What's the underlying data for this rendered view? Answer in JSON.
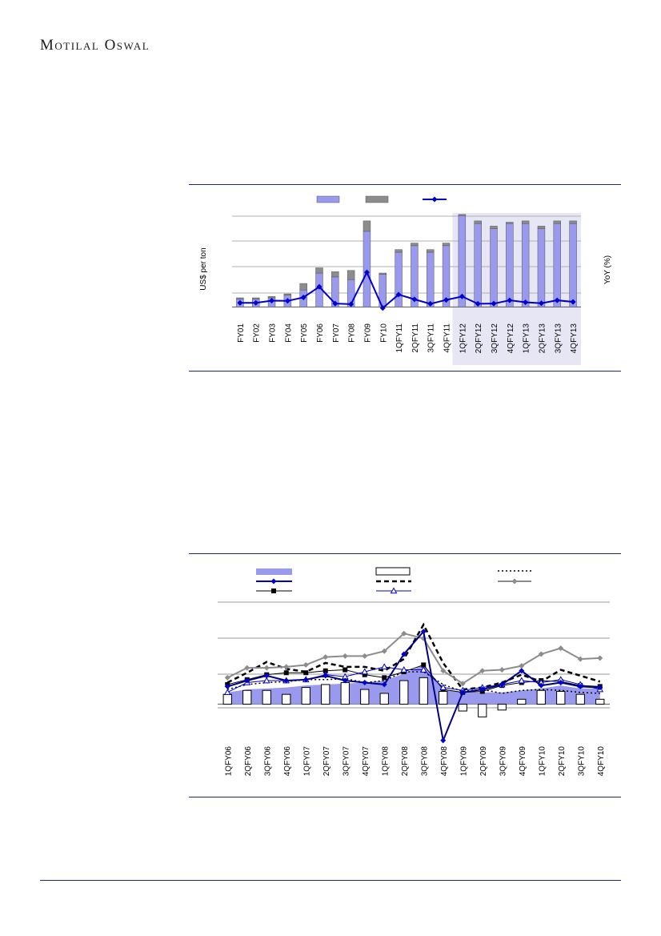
{
  "header": {
    "logo_text": "Motilal Oswal"
  },
  "colors": {
    "rule": "#1f2a6b",
    "accent_purple": "#9999ee",
    "grey_bar": "#8c8c8c",
    "navy": "#0000cc",
    "shade": "#e6e6f5"
  },
  "chart_data": [
    {
      "type": "bar",
      "ylabel": "US$ per ton",
      "y2label": "YoY (%)",
      "ylim": [
        -45,
        385
      ],
      "y2lim": [
        -80,
        500
      ],
      "grid": true,
      "categories": [
        "FY01",
        "FY02",
        "FY03",
        "FY04",
        "FY05",
        "FY06",
        "FY07",
        "FY08",
        "FY09",
        "FY10",
        "1QFY11",
        "2QFY11",
        "3QFY11",
        "4QFY11",
        "1QFY12",
        "2QFY12",
        "3QFY12",
        "4QFY12",
        "1QFY13",
        "2QFY13",
        "3QFY13",
        "4QFY13"
      ],
      "shaded_from_index": 14,
      "series": [
        {
          "kind": "bar_stack_bottom",
          "values": [
            30,
            30,
            35,
            45,
            65,
            130,
            115,
            105,
            290,
            125,
            210,
            235,
            210,
            235,
            350,
            320,
            300,
            320,
            320,
            300,
            320,
            320
          ]
        },
        {
          "kind": "bar_stack_top",
          "values": [
            5,
            5,
            5,
            5,
            25,
            20,
            20,
            35,
            40,
            5,
            10,
            10,
            10,
            10,
            5,
            10,
            10,
            5,
            10,
            10,
            10,
            10
          ]
        },
        {
          "kind": "line_y2",
          "values": [
            2,
            2,
            13,
            12,
            30,
            85,
            -2,
            -5,
            160,
            -25,
            45,
            20,
            -3,
            17,
            35,
            -3,
            -2,
            15,
            5,
            0,
            15,
            7
          ]
        }
      ]
    },
    {
      "type": "line",
      "ylim": [
        -38,
        104
      ],
      "grid": true,
      "categories": [
        "1QFY06",
        "2QFY06",
        "3QFY06",
        "4QFY06",
        "1QFY07",
        "2QFY07",
        "3QFY07",
        "4QFY07",
        "1QFY08",
        "2QFY08",
        "3QFY08",
        "4QFY08",
        "1QFY09",
        "2QFY09",
        "3QFY09",
        "4QFY09",
        "1QFY10",
        "2QFY10",
        "3QFY10",
        "4QFY10"
      ],
      "series": [
        {
          "kind": "area",
          "values": [
            12,
            15,
            16,
            17,
            19,
            20,
            21,
            22,
            24,
            31,
            40,
            15,
            12,
            12,
            12,
            14,
            16,
            19,
            16,
            16
          ]
        },
        {
          "kind": "bar_hollow",
          "values": [
            10,
            14,
            14,
            10,
            17,
            20,
            22,
            15,
            11,
            24,
            27,
            13,
            -7,
            -13,
            -6,
            5,
            14,
            13,
            10,
            5
          ]
        },
        {
          "kind": "dotted",
          "values": [
            15,
            20,
            22,
            23,
            25,
            25,
            26,
            22,
            24,
            33,
            33,
            20,
            13,
            15,
            11,
            14,
            15,
            14,
            12,
            11
          ]
        },
        {
          "kind": "navy_diamond",
          "values": [
            18,
            24,
            29,
            24,
            25,
            29,
            24,
            22,
            20,
            51,
            74,
            -37,
            12,
            15,
            20,
            34,
            19,
            22,
            18,
            17
          ]
        },
        {
          "kind": "dashed",
          "values": [
            22,
            32,
            43,
            36,
            33,
            42,
            38,
            38,
            34,
            46,
            81,
            42,
            15,
            17,
            22,
            30,
            23,
            35,
            29,
            23
          ]
        },
        {
          "kind": "grey_diamond",
          "values": [
            27,
            37,
            37,
            38,
            40,
            48,
            49,
            49,
            54,
            72,
            67,
            34,
            21,
            34,
            35,
            39,
            51,
            57,
            46,
            47
          ]
        },
        {
          "kind": "black_square",
          "values": [
            20,
            25,
            30,
            32,
            32,
            34,
            35,
            30,
            27,
            33,
            40,
            15,
            12,
            13,
            19,
            22,
            24,
            23,
            19,
            18
          ]
        },
        {
          "kind": "triangle",
          "values": [
            12,
            22,
            24,
            24,
            25,
            30,
            28,
            33,
            38,
            35,
            35,
            17,
            14,
            17,
            20,
            24,
            22,
            25,
            20,
            15
          ]
        }
      ]
    }
  ]
}
